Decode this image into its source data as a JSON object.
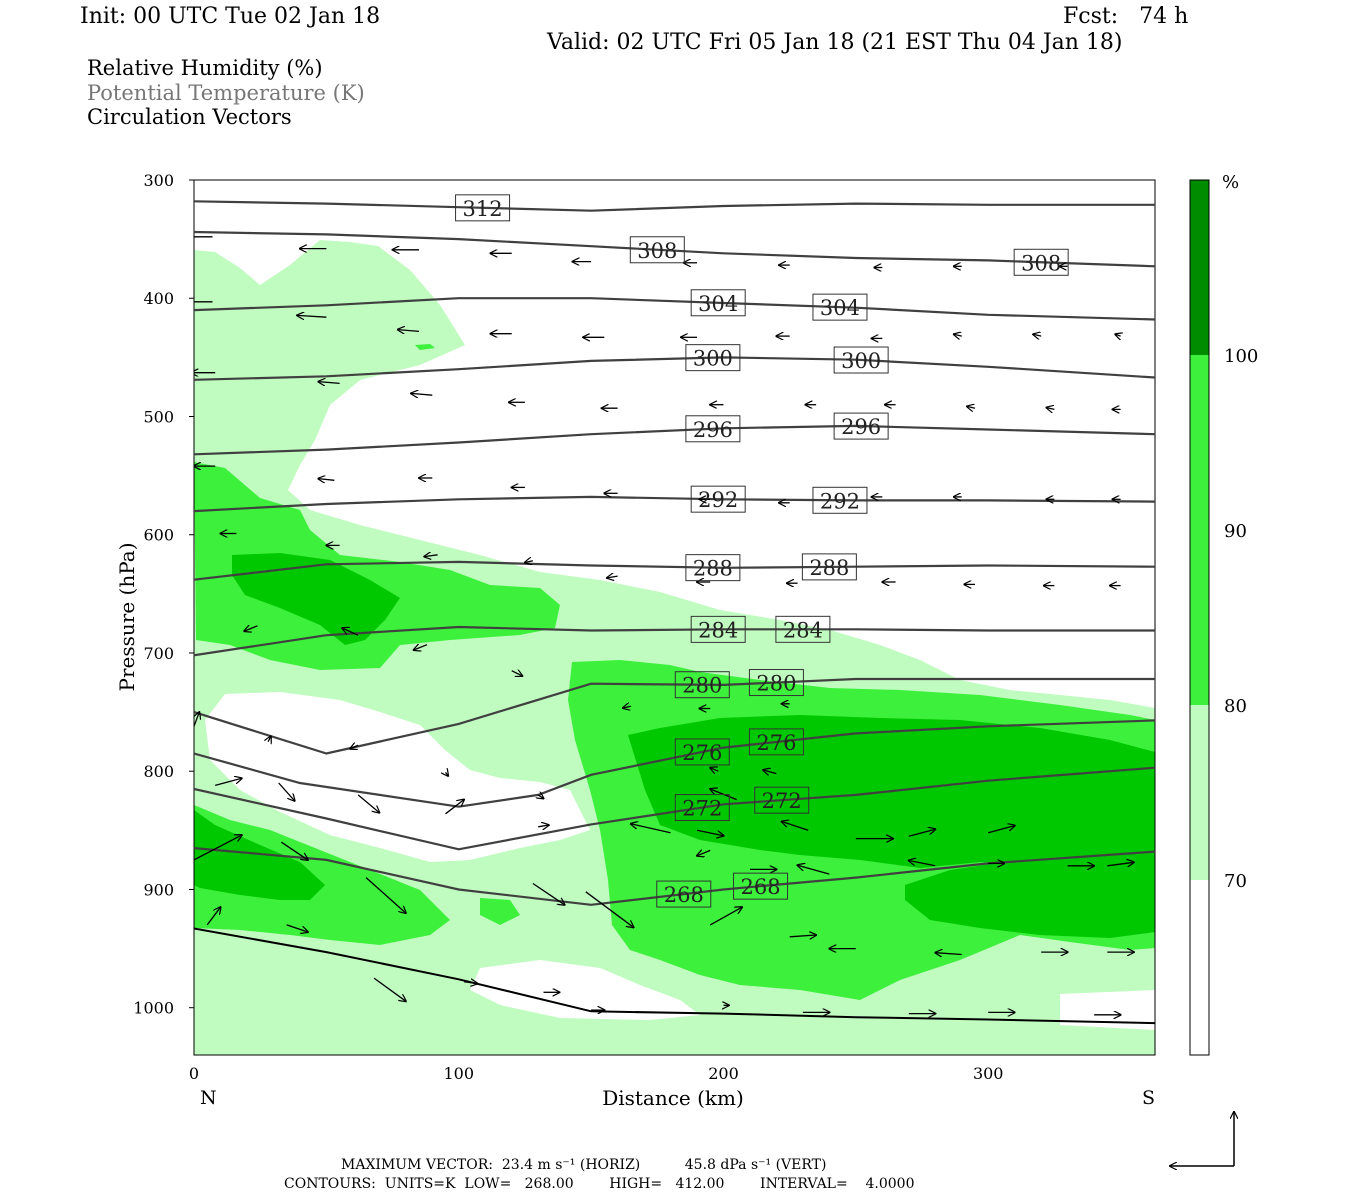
{
  "header": {
    "init": "Init: 00 UTC Tue 02 Jan 18",
    "fcst": "Fcst:   74 h",
    "valid": "Valid: 02 UTC Fri 05 Jan 18 (21 EST Thu 04 Jan 18)"
  },
  "legend": {
    "rh": "Relative Humidity (%)",
    "theta": "Potential Temperature (K)",
    "vectors": "Circulation Vectors"
  },
  "colors": {
    "rh_70_80": "#c0fcc0",
    "rh_80_90": "#3cf03c",
    "rh_90_100": "#00c800",
    "rh_100": "#008c00",
    "contour": "#404040"
  },
  "chart_data": {
    "type": "contour",
    "xlabel": "Distance (km)",
    "ylabel": "Pressure (hPa)",
    "x_ticks": [
      "0",
      "100",
      "200",
      "300"
    ],
    "y_ticks": [
      "300",
      "400",
      "500",
      "600",
      "700",
      "800",
      "900",
      "1000"
    ],
    "xlim": [
      0,
      363
    ],
    "ylim": [
      1040,
      300
    ],
    "left_end": "N",
    "right_end": "S",
    "colorbar": {
      "unit": "%",
      "levels": [
        "70",
        "80",
        "90",
        "100"
      ]
    },
    "theta_contours": [
      {
        "label": "312",
        "label_x": [
          109
        ],
        "points": [
          [
            0,
            318
          ],
          [
            50,
            320
          ],
          [
            100,
            323
          ],
          [
            150,
            326
          ],
          [
            200,
            322
          ],
          [
            250,
            320
          ],
          [
            300,
            321
          ],
          [
            363,
            321
          ]
        ]
      },
      {
        "label": "308",
        "label_x": [
          175,
          320
        ],
        "points": [
          [
            0,
            344
          ],
          [
            50,
            346
          ],
          [
            100,
            350
          ],
          [
            150,
            356
          ],
          [
            200,
            362
          ],
          [
            250,
            366
          ],
          [
            300,
            368
          ],
          [
            363,
            373
          ]
        ]
      },
      {
        "label": "304",
        "label_x": [
          198,
          244
        ],
        "points": [
          [
            0,
            410
          ],
          [
            50,
            406
          ],
          [
            100,
            400
          ],
          [
            150,
            400
          ],
          [
            200,
            404
          ],
          [
            250,
            408
          ],
          [
            300,
            414
          ],
          [
            363,
            418
          ]
        ]
      },
      {
        "label": "300",
        "label_x": [
          196,
          252
        ],
        "points": [
          [
            0,
            469
          ],
          [
            50,
            466
          ],
          [
            100,
            460
          ],
          [
            150,
            453
          ],
          [
            200,
            450
          ],
          [
            250,
            452
          ],
          [
            300,
            458
          ],
          [
            363,
            467
          ]
        ]
      },
      {
        "label": "296",
        "label_x": [
          196,
          252
        ],
        "points": [
          [
            0,
            532
          ],
          [
            50,
            528
          ],
          [
            100,
            522
          ],
          [
            150,
            515
          ],
          [
            200,
            510
          ],
          [
            250,
            508
          ],
          [
            300,
            511
          ],
          [
            363,
            515
          ]
        ]
      },
      {
        "label": "292",
        "label_x": [
          198,
          244
        ],
        "points": [
          [
            0,
            580
          ],
          [
            50,
            574
          ],
          [
            100,
            570
          ],
          [
            150,
            568
          ],
          [
            200,
            570
          ],
          [
            250,
            571
          ],
          [
            300,
            571
          ],
          [
            363,
            572
          ]
        ]
      },
      {
        "label": "288",
        "label_x": [
          196,
          240
        ],
        "points": [
          [
            0,
            638
          ],
          [
            50,
            625
          ],
          [
            100,
            623
          ],
          [
            150,
            626
          ],
          [
            200,
            628
          ],
          [
            250,
            627
          ],
          [
            300,
            626
          ],
          [
            363,
            627
          ]
        ]
      },
      {
        "label": "284",
        "label_x": [
          198,
          230
        ],
        "points": [
          [
            0,
            702
          ],
          [
            50,
            685
          ],
          [
            100,
            678
          ],
          [
            150,
            681
          ],
          [
            200,
            680
          ],
          [
            250,
            680
          ],
          [
            300,
            681
          ],
          [
            363,
            681
          ]
        ]
      },
      {
        "label": "280",
        "label_x": [
          192,
          220
        ],
        "points": [
          [
            0,
            750
          ],
          [
            50,
            785
          ],
          [
            100,
            760
          ],
          [
            150,
            726
          ],
          [
            200,
            727
          ],
          [
            250,
            722
          ],
          [
            300,
            722
          ],
          [
            363,
            722
          ]
        ]
      },
      {
        "label": "276",
        "label_x": [
          192,
          220
        ],
        "points": [
          [
            0,
            785
          ],
          [
            40,
            810
          ],
          [
            100,
            830
          ],
          [
            130,
            820
          ],
          [
            150,
            803
          ],
          [
            200,
            780
          ],
          [
            250,
            768
          ],
          [
            300,
            762
          ],
          [
            363,
            757
          ]
        ]
      },
      {
        "label": "272",
        "label_x": [
          192,
          222
        ],
        "points": [
          [
            0,
            815
          ],
          [
            50,
            840
          ],
          [
            100,
            866
          ],
          [
            150,
            845
          ],
          [
            200,
            828
          ],
          [
            250,
            820
          ],
          [
            300,
            808
          ],
          [
            363,
            797
          ]
        ]
      },
      {
        "label": "268",
        "label_x": [
          185,
          214
        ],
        "points": [
          [
            0,
            865
          ],
          [
            50,
            875
          ],
          [
            100,
            900
          ],
          [
            150,
            913
          ],
          [
            200,
            900
          ],
          [
            250,
            890
          ],
          [
            300,
            878
          ],
          [
            363,
            868
          ]
        ]
      }
    ],
    "surface": {
      "label": "",
      "points": [
        [
          0,
          933
        ],
        [
          50,
          953
        ],
        [
          100,
          976
        ],
        [
          150,
          1003
        ],
        [
          200,
          1005
        ],
        [
          250,
          1008
        ],
        [
          300,
          1010
        ],
        [
          363,
          1013
        ]
      ]
    },
    "vectors": [
      [
        7,
        348,
        -10,
        0
      ],
      [
        50,
        358,
        -10,
        0
      ],
      [
        85,
        359,
        -10,
        0
      ],
      [
        120,
        362,
        -8,
        0
      ],
      [
        150,
        369,
        -7,
        0
      ],
      [
        190,
        370,
        -5,
        0
      ],
      [
        225,
        372,
        -4,
        0
      ],
      [
        260,
        374,
        -3,
        0
      ],
      [
        290,
        373,
        -3,
        0
      ],
      [
        330,
        373,
        -3,
        0
      ],
      [
        7,
        403,
        -11,
        0
      ],
      [
        50,
        416,
        -11,
        -1
      ],
      [
        85,
        428,
        -8,
        -1
      ],
      [
        120,
        430,
        -8,
        0
      ],
      [
        155,
        433,
        -8,
        0
      ],
      [
        190,
        433,
        -6,
        0
      ],
      [
        225,
        432,
        -5,
        0
      ],
      [
        260,
        434,
        -4,
        0
      ],
      [
        290,
        432,
        -3,
        -1
      ],
      [
        320,
        432,
        -3,
        -1
      ],
      [
        350,
        432,
        -2,
        -1
      ],
      [
        8,
        463,
        -9,
        0
      ],
      [
        55,
        472,
        -8,
        -1
      ],
      [
        90,
        482,
        -8,
        -1
      ],
      [
        125,
        488,
        -6,
        0
      ],
      [
        160,
        493,
        -6,
        0
      ],
      [
        200,
        490,
        -5,
        0
      ],
      [
        235,
        490,
        -4,
        0
      ],
      [
        265,
        490,
        -4,
        0
      ],
      [
        295,
        493,
        -3,
        -1
      ],
      [
        325,
        494,
        -3,
        -1
      ],
      [
        350,
        494,
        -3,
        0
      ],
      [
        8,
        542,
        -8,
        0
      ],
      [
        53,
        554,
        -6,
        -1
      ],
      [
        90,
        552,
        -5,
        0
      ],
      [
        125,
        560,
        -5,
        0
      ],
      [
        160,
        565,
        -5,
        0
      ],
      [
        195,
        570,
        -4,
        0
      ],
      [
        225,
        573,
        -4,
        0
      ],
      [
        260,
        568,
        -4,
        0
      ],
      [
        290,
        568,
        -3,
        0
      ],
      [
        325,
        570,
        -3,
        0
      ],
      [
        350,
        570,
        -3,
        0
      ],
      [
        16,
        599,
        -6,
        0
      ],
      [
        55,
        609,
        -5,
        0
      ],
      [
        92,
        617,
        -5,
        1
      ],
      [
        128,
        622,
        -3,
        1
      ],
      [
        160,
        635,
        -4,
        1
      ],
      [
        195,
        640,
        -5,
        0
      ],
      [
        228,
        641,
        -4,
        0
      ],
      [
        265,
        640,
        -5,
        0
      ],
      [
        295,
        642,
        -4,
        0
      ],
      [
        325,
        643,
        -4,
        0
      ],
      [
        350,
        643,
        -4,
        0
      ],
      [
        24,
        677,
        -5,
        3
      ],
      [
        62,
        685,
        -6,
        -4
      ],
      [
        88,
        693,
        -5,
        3
      ],
      [
        120,
        715,
        4,
        3
      ],
      [
        165,
        745,
        -3,
        1
      ],
      [
        195,
        747,
        -4,
        0
      ],
      [
        225,
        743,
        -3,
        0
      ],
      [
        28,
        775,
        1,
        -3
      ],
      [
        62,
        778,
        -3,
        2
      ],
      [
        95,
        801,
        1,
        2
      ],
      [
        130,
        820,
        2,
        2
      ],
      [
        198,
        800,
        -3,
        -2
      ],
      [
        220,
        802,
        -5,
        -2
      ],
      [
        0,
        762,
        2,
        -8
      ],
      [
        8,
        812,
        10,
        -4
      ],
      [
        32,
        810,
        6,
        10
      ],
      [
        62,
        820,
        8,
        10
      ],
      [
        95,
        836,
        7,
        -8
      ],
      [
        130,
        847,
        4,
        -1
      ],
      [
        0,
        875,
        18,
        -14
      ],
      [
        33,
        860,
        10,
        10
      ],
      [
        65,
        890,
        15,
        20
      ],
      [
        128,
        895,
        12,
        12
      ],
      [
        148,
        902,
        18,
        20
      ],
      [
        5,
        930,
        5,
        -10
      ],
      [
        35,
        930,
        8,
        4
      ],
      [
        68,
        975,
        12,
        13
      ],
      [
        102,
        978,
        5,
        1
      ],
      [
        132,
        987,
        6,
        0
      ],
      [
        180,
        852,
        -15,
        -5
      ],
      [
        205,
        824,
        -10,
        -6
      ],
      [
        190,
        850,
        10,
        3
      ],
      [
        232,
        850,
        -10,
        -5
      ],
      [
        250,
        857,
        14,
        0
      ],
      [
        270,
        855,
        10,
        -4
      ],
      [
        300,
        852,
        10,
        -4
      ],
      [
        195,
        867,
        -5,
        3
      ],
      [
        210,
        883,
        10,
        0
      ],
      [
        240,
        887,
        -12,
        -5
      ],
      [
        280,
        880,
        -10,
        -3
      ],
      [
        300,
        878,
        6,
        0
      ],
      [
        330,
        880,
        10,
        0
      ],
      [
        345,
        880,
        10,
        -2
      ],
      [
        195,
        930,
        12,
        -10
      ],
      [
        225,
        940,
        10,
        -1
      ],
      [
        250,
        950,
        -10,
        0
      ],
      [
        290,
        955,
        -10,
        -1
      ],
      [
        320,
        953,
        10,
        0
      ],
      [
        345,
        953,
        10,
        0
      ],
      [
        150,
        1002,
        5,
        0
      ],
      [
        200,
        998,
        2,
        0
      ],
      [
        230,
        1004,
        10,
        0
      ],
      [
        270,
        1005,
        10,
        0
      ],
      [
        300,
        1004,
        10,
        0
      ],
      [
        340,
        1006,
        10,
        0
      ]
    ]
  },
  "footer": {
    "line1": "MAXIMUM VECTOR:  23.4 m s⁻¹ (HORIZ)          45.8 dPa s⁻¹ (VERT)",
    "line2": "CONTOURS:  UNITS=K  LOW=   268.00        HIGH=   412.00        INTERVAL=    4.0000"
  }
}
